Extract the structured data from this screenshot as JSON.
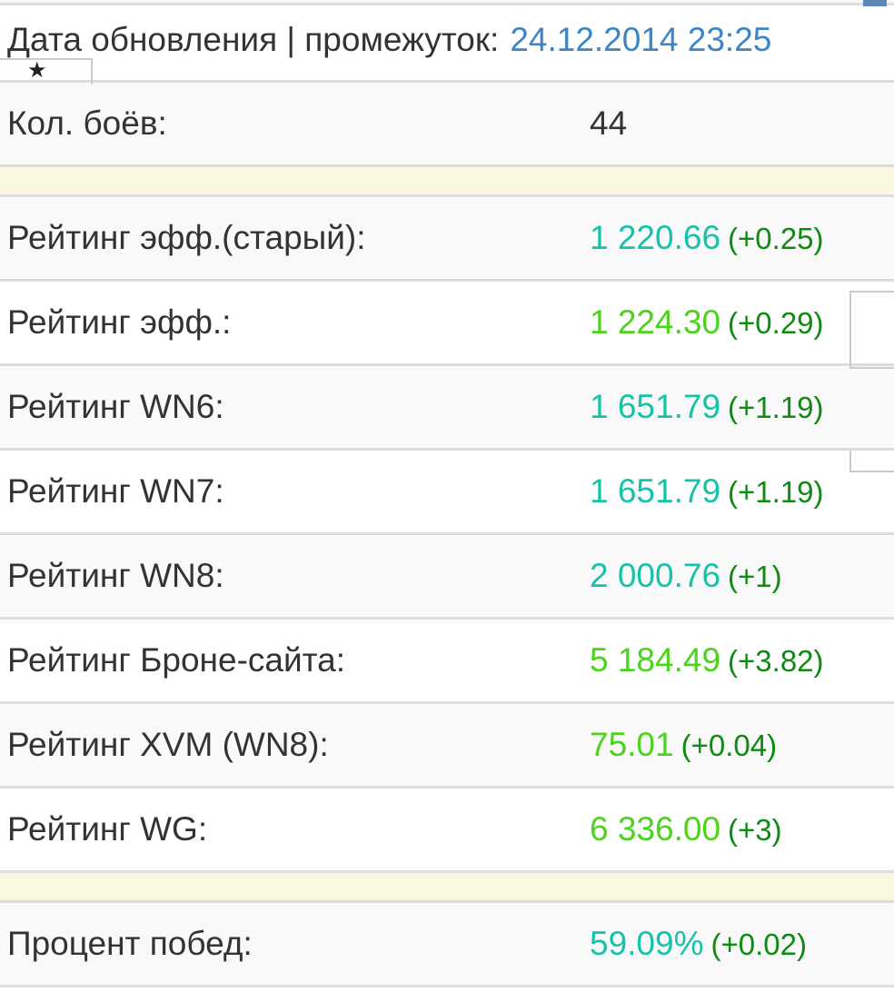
{
  "header": {
    "label": "Дата обновления | промежуток:",
    "value": "24.12.2014 23:25"
  },
  "icons": {
    "favorite": "star-icon"
  },
  "colors": {
    "teal": "#16c3a9",
    "green": "#4bd41b",
    "delta": "#0f8a12",
    "date": "#3d86c6"
  },
  "battles": {
    "label": "Кол. боёв:",
    "value": "44"
  },
  "ratings": [
    {
      "label": "Рейтинг эфф.(старый):",
      "value": "1 220.66",
      "delta": "(+0.25)",
      "color": "teal"
    },
    {
      "label": "Рейтинг эфф.:",
      "value": "1 224.30",
      "delta": "(+0.29)",
      "color": "green"
    },
    {
      "label": "Рейтинг WN6:",
      "value": "1 651.79",
      "delta": "(+1.19)",
      "color": "teal"
    },
    {
      "label": "Рейтинг WN7:",
      "value": "1 651.79",
      "delta": "(+1.19)",
      "color": "teal"
    },
    {
      "label": "Рейтинг WN8:",
      "value": "2 000.76",
      "delta": "(+1)",
      "color": "teal"
    },
    {
      "label": "Рейтинг Броне-сайта:",
      "value": "5 184.49",
      "delta": "(+3.82)",
      "color": "green"
    },
    {
      "label": "Рейтинг XVM (WN8):",
      "value": "75.01",
      "delta": "(+0.04)",
      "color": "green"
    },
    {
      "label": "Рейтинг WG:",
      "value": "6 336.00",
      "delta": "(+3)",
      "color": "green"
    }
  ],
  "winrate": {
    "label": "Процент побед:",
    "value": "59.09%",
    "delta": "(+0.02)",
    "color": "teal"
  }
}
